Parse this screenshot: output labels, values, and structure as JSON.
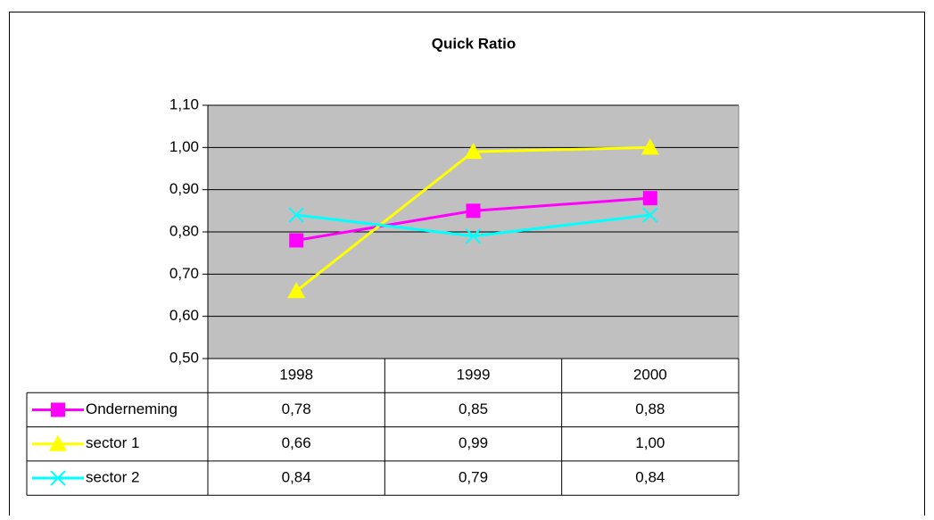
{
  "chart_data": {
    "type": "line",
    "title": "Quick Ratio",
    "categories": [
      "1998",
      "1999",
      "2000"
    ],
    "series": [
      {
        "name": "Onderneming",
        "color": "#ff00ff",
        "marker": "square",
        "values": [
          0.78,
          0.85,
          0.88
        ],
        "value_labels": [
          "0,78",
          "0,85",
          "0,88"
        ]
      },
      {
        "name": "sector 1",
        "color": "#ffff00",
        "marker": "triangle",
        "values": [
          0.66,
          0.99,
          1.0
        ],
        "value_labels": [
          "0,66",
          "0,99",
          "1,00"
        ]
      },
      {
        "name": "sector 2",
        "color": "#00ffff",
        "marker": "x",
        "values": [
          0.84,
          0.79,
          0.84
        ],
        "value_labels": [
          "0,84",
          "0,79",
          "0,84"
        ]
      }
    ],
    "ylim": [
      0.5,
      1.1
    ],
    "yticks": [
      {
        "value": 0.5,
        "label": "0,50"
      },
      {
        "value": 0.6,
        "label": "0,60"
      },
      {
        "value": 0.7,
        "label": "0,70"
      },
      {
        "value": 0.8,
        "label": "0,80"
      },
      {
        "value": 0.9,
        "label": "0,90"
      },
      {
        "value": 1.0,
        "label": "1,00"
      },
      {
        "value": 1.1,
        "label": "1,10"
      }
    ],
    "grid": true,
    "plot_background": "#c0c0c0"
  }
}
